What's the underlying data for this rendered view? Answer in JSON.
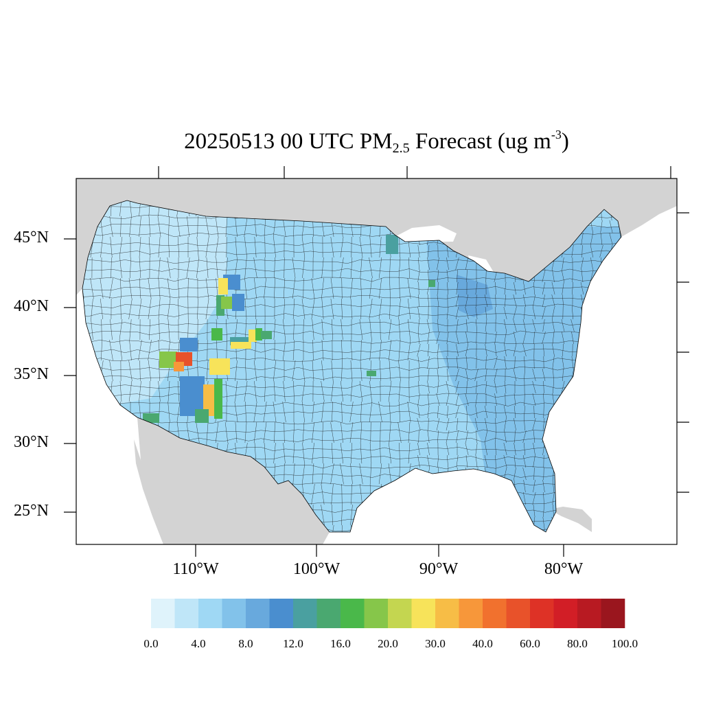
{
  "title": {
    "prefix": "20250513 00 UTC PM",
    "subscript": "2.5",
    "middle": " Forecast (ug m",
    "superscript": "-3",
    "suffix": ")"
  },
  "axes": {
    "lat_labels": [
      "45°N",
      "40°N",
      "35°N",
      "30°N",
      "25°N"
    ],
    "lon_labels": [
      "110°W",
      "100°W",
      "90°W",
      "80°W"
    ]
  },
  "colorbar": {
    "colors": [
      "#dff3fb",
      "#bfe6f8",
      "#9fd8f4",
      "#82c2ea",
      "#68a9dd",
      "#4a8ecf",
      "#4aa0a0",
      "#4aa870",
      "#4ab84a",
      "#86c64a",
      "#c4d650",
      "#f7e35a",
      "#f7bd46",
      "#f7973a",
      "#f1712e",
      "#e8522a",
      "#de3226",
      "#d21e26",
      "#b81a22",
      "#9a161e"
    ],
    "labels": [
      "0.0",
      "4.0",
      "8.0",
      "12.0",
      "16.0",
      "20.0",
      "30.0",
      "40.0",
      "60.0",
      "80.0",
      "100.0"
    ]
  },
  "map": {
    "land_color": "#d3d3d3",
    "water_color": "#ffffff",
    "region_base_color": "#9fd8f4",
    "region_west_color": "#bfe6f8",
    "region_east_color": "#82c2ea"
  }
}
